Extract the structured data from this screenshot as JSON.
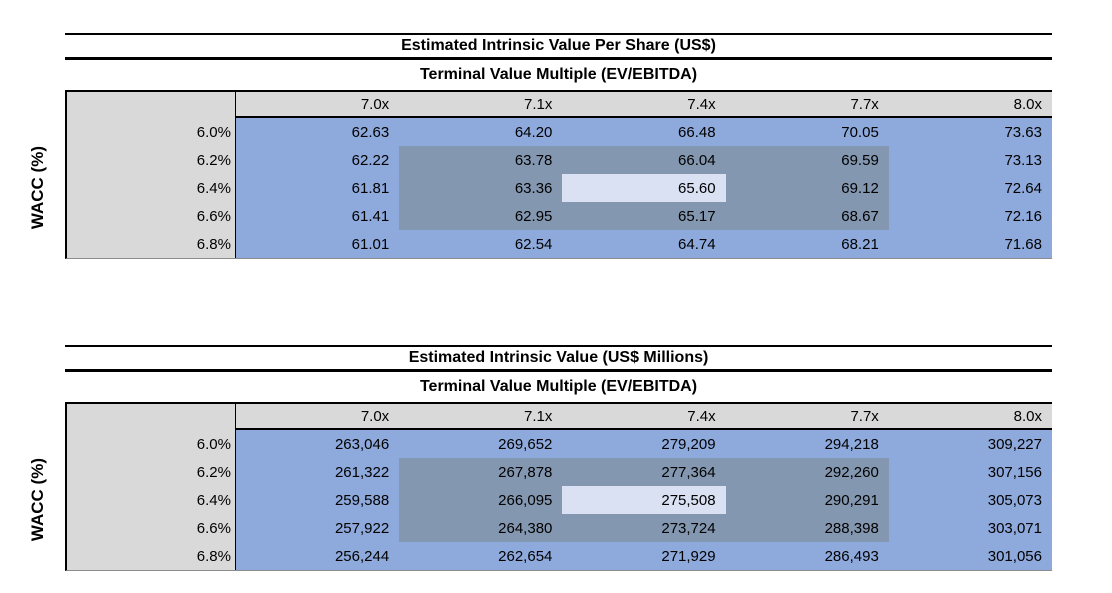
{
  "colors": {
    "matrix_fill": "#8ea9db",
    "inner_band_fill": "#8497b0",
    "base_case_fill": "#d9e1f2",
    "header_fill": "#d9d9d9"
  },
  "tables": [
    {
      "title": "Estimated Intrinsic Value Per Share (US$)",
      "subtitle": "Terminal Value Multiple (EV/EBITDA)",
      "y_axis_label": "WACC (%)",
      "col_headers": [
        "7.0x",
        "7.1x",
        "7.4x",
        "7.7x",
        "8.0x"
      ],
      "row_headers": [
        "6.0%",
        "6.2%",
        "6.4%",
        "6.6%",
        "6.8%"
      ],
      "rows": [
        [
          "62.63",
          "64.20",
          "66.48",
          "70.05",
          "73.63"
        ],
        [
          "62.22",
          "63.78",
          "66.04",
          "69.59",
          "73.13"
        ],
        [
          "61.81",
          "63.36",
          "65.60",
          "69.12",
          "72.64"
        ],
        [
          "61.41",
          "62.95",
          "65.17",
          "68.67",
          "72.16"
        ],
        [
          "61.01",
          "62.54",
          "64.74",
          "68.21",
          "71.68"
        ]
      ],
      "base_case": {
        "row": 2,
        "col": 2,
        "value": "65.60"
      },
      "inner_band": {
        "rows": [
          1,
          3
        ],
        "cols": [
          1,
          3
        ]
      }
    },
    {
      "title": "Estimated Intrinsic Value (US$ Millions)",
      "subtitle": "Terminal Value Multiple (EV/EBITDA)",
      "y_axis_label": "WACC (%)",
      "col_headers": [
        "7.0x",
        "7.1x",
        "7.4x",
        "7.7x",
        "8.0x"
      ],
      "row_headers": [
        "6.0%",
        "6.2%",
        "6.4%",
        "6.6%",
        "6.8%"
      ],
      "rows": [
        [
          "263,046",
          "269,652",
          "279,209",
          "294,218",
          "309,227"
        ],
        [
          "261,322",
          "267,878",
          "277,364",
          "292,260",
          "307,156"
        ],
        [
          "259,588",
          "266,095",
          "275,508",
          "290,291",
          "305,073"
        ],
        [
          "257,922",
          "264,380",
          "273,724",
          "288,398",
          "303,071"
        ],
        [
          "256,244",
          "262,654",
          "271,929",
          "286,493",
          "301,056"
        ]
      ],
      "base_case": {
        "row": 2,
        "col": 2,
        "value": "275,508"
      },
      "inner_band": {
        "rows": [
          1,
          3
        ],
        "cols": [
          1,
          3
        ]
      }
    }
  ]
}
